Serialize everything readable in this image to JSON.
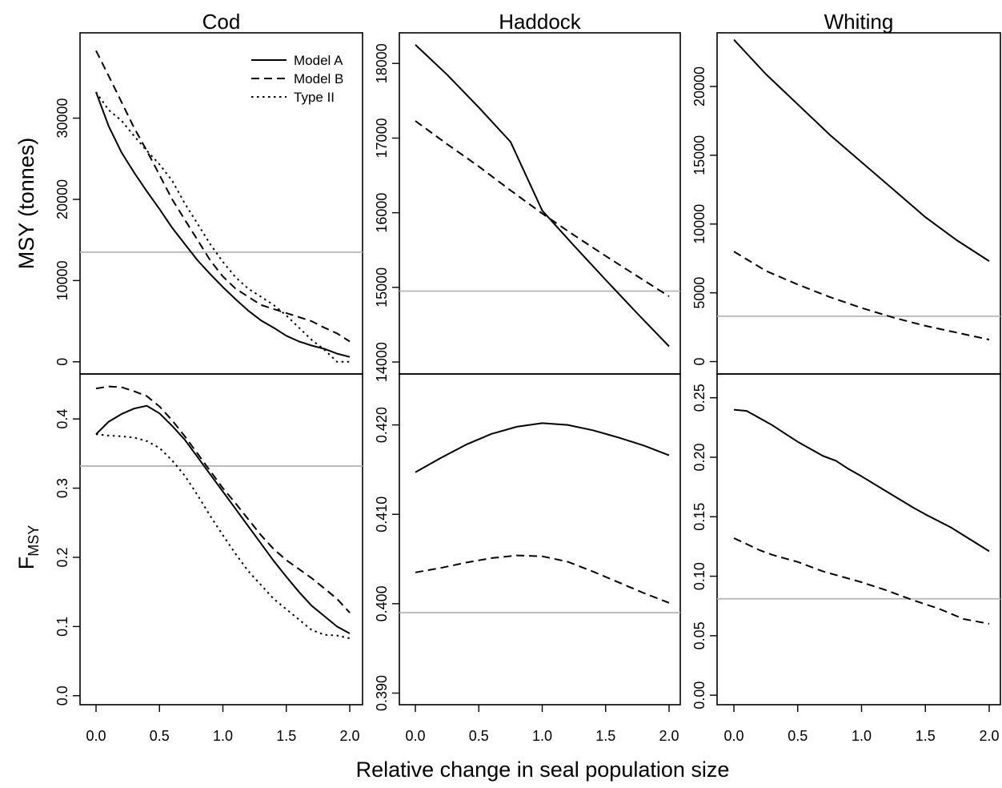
{
  "chart_data": {
    "type": "line",
    "xlabel": "Relative change in seal population size",
    "row_labels": {
      "top": "MSY (tonnes)",
      "bottom_main": "F",
      "bottom_sub": "MSY"
    },
    "x_ticks": [
      "0.0",
      "0.5",
      "1.0",
      "1.5",
      "2.0"
    ],
    "x_tick_values": [
      0,
      0.5,
      1,
      1.5,
      2
    ],
    "xlim": [
      0,
      2
    ],
    "legend": {
      "position": "top-right",
      "panel": "cod",
      "entries": [
        {
          "name": "Model A",
          "style": "solid"
        },
        {
          "name": "Model B",
          "style": "dashed"
        },
        {
          "name": "Type II",
          "style": "dotted"
        }
      ]
    },
    "columns": [
      {
        "key": "cod",
        "title": "Cod",
        "msy": {
          "ylim": [
            -1500,
            40500
          ],
          "yticks": [
            0,
            10000,
            20000,
            30000
          ],
          "ytick_labels": [
            "0",
            "10000",
            "20000",
            "30000"
          ],
          "reference": 13500,
          "series": [
            {
              "name": "Model A",
              "style": "solid",
              "x": [
                0,
                0.1,
                0.2,
                0.3,
                0.4,
                0.5,
                0.6,
                0.7,
                0.8,
                0.9,
                1.0,
                1.1,
                1.2,
                1.3,
                1.4,
                1.5,
                1.6,
                1.7,
                1.8,
                1.9,
                2.0
              ],
              "y": [
                33200,
                29000,
                25800,
                23300,
                21000,
                18800,
                16500,
                14500,
                12500,
                10800,
                9200,
                7700,
                6300,
                5100,
                4200,
                3200,
                2500,
                2000,
                1600,
                1000,
                600
              ]
            },
            {
              "name": "Model B",
              "style": "dashed",
              "x": [
                0,
                0.1,
                0.2,
                0.3,
                0.4,
                0.5,
                0.6,
                0.7,
                0.8,
                0.9,
                1.0,
                1.1,
                1.2,
                1.3,
                1.4,
                1.5,
                1.6,
                1.7,
                1.8,
                1.9,
                2.0
              ],
              "y": [
                38300,
                35200,
                32000,
                28800,
                26000,
                23000,
                20000,
                17500,
                15000,
                12500,
                10500,
                9000,
                8000,
                7000,
                6500,
                6000,
                5500,
                5000,
                4200,
                3500,
                2500
              ]
            },
            {
              "name": "Type II",
              "style": "dotted",
              "x": [
                0,
                0.1,
                0.2,
                0.3,
                0.4,
                0.5,
                0.6,
                0.7,
                0.8,
                0.9,
                1.0,
                1.1,
                1.2,
                1.3,
                1.4,
                1.5,
                1.6,
                1.7,
                1.8,
                1.9,
                2.0
              ],
              "y": [
                33200,
                31000,
                29700,
                27800,
                26000,
                24300,
                22300,
                19500,
                17000,
                14500,
                12300,
                10400,
                9000,
                8000,
                7000,
                5700,
                4200,
                2700,
                1500,
                0,
                0
              ]
            }
          ]
        },
        "fmsy": {
          "ylim": [
            -0.013,
            0.465
          ],
          "yticks": [
            0.0,
            0.1,
            0.2,
            0.3,
            0.4
          ],
          "ytick_labels": [
            "0.0",
            "0.1",
            "0.2",
            "0.3",
            "0.4"
          ],
          "reference": 0.332,
          "series": [
            {
              "name": "Model A",
              "style": "solid",
              "x": [
                0,
                0.1,
                0.2,
                0.3,
                0.4,
                0.5,
                0.6,
                0.7,
                0.8,
                0.9,
                1.0,
                1.1,
                1.2,
                1.3,
                1.4,
                1.5,
                1.6,
                1.7,
                1.8,
                1.9,
                2.0
              ],
              "y": [
                0.378,
                0.396,
                0.407,
                0.415,
                0.419,
                0.408,
                0.39,
                0.37,
                0.345,
                0.32,
                0.295,
                0.27,
                0.245,
                0.22,
                0.195,
                0.172,
                0.15,
                0.13,
                0.115,
                0.1,
                0.09
              ]
            },
            {
              "name": "Model B",
              "style": "dashed",
              "x": [
                0,
                0.1,
                0.2,
                0.3,
                0.4,
                0.5,
                0.6,
                0.7,
                0.8,
                0.9,
                1.0,
                1.1,
                1.2,
                1.3,
                1.4,
                1.5,
                1.6,
                1.7,
                1.8,
                1.9,
                2.0
              ],
              "y": [
                0.444,
                0.447,
                0.446,
                0.44,
                0.433,
                0.418,
                0.398,
                0.375,
                0.35,
                0.325,
                0.3,
                0.278,
                0.255,
                0.232,
                0.212,
                0.196,
                0.183,
                0.17,
                0.155,
                0.14,
                0.12
              ]
            },
            {
              "name": "Type II",
              "style": "dotted",
              "x": [
                0,
                0.1,
                0.2,
                0.3,
                0.4,
                0.5,
                0.6,
                0.7,
                0.8,
                0.9,
                1.0,
                1.1,
                1.2,
                1.3,
                1.4,
                1.5,
                1.6,
                1.7,
                1.8,
                1.9,
                2.0
              ],
              "y": [
                0.378,
                0.376,
                0.375,
                0.373,
                0.368,
                0.358,
                0.34,
                0.318,
                0.29,
                0.26,
                0.232,
                0.205,
                0.18,
                0.16,
                0.14,
                0.125,
                0.11,
                0.095,
                0.088,
                0.087,
                0.083
              ]
            }
          ]
        }
      },
      {
        "key": "haddock",
        "title": "Haddock",
        "msy": {
          "ylim": [
            13840,
            18410
          ],
          "yticks": [
            14000,
            15000,
            16000,
            17000,
            18000
          ],
          "ytick_labels": [
            "14000",
            "15000",
            "16000",
            "17000",
            "18000"
          ],
          "reference": 14950,
          "series": [
            {
              "name": "Model A",
              "style": "solid",
              "x": [
                0,
                0.25,
                0.5,
                0.75,
                1.0,
                1.25,
                1.5,
                1.75,
                2.0
              ],
              "y": [
                18250,
                17850,
                17410,
                16950,
                16030,
                15560,
                15100,
                14650,
                14210
              ]
            },
            {
              "name": "Model B",
              "style": "dashed",
              "x": [
                0,
                0.25,
                0.5,
                0.75,
                1.0,
                1.25,
                1.5,
                1.75,
                2.0
              ],
              "y": [
                17230,
                16920,
                16620,
                16300,
                15990,
                15700,
                15420,
                15150,
                14880
              ]
            }
          ]
        },
        "fmsy": {
          "ylim": [
            0.3887,
            0.4257
          ],
          "yticks": [
            0.39,
            0.4,
            0.41,
            0.42
          ],
          "ytick_labels": [
            "0.390",
            "0.400",
            "0.410",
            "0.420"
          ],
          "reference": 0.399,
          "series": [
            {
              "name": "Model A",
              "style": "solid",
              "x": [
                0,
                0.2,
                0.4,
                0.6,
                0.8,
                1.0,
                1.2,
                1.4,
                1.6,
                1.8,
                2.0
              ],
              "y": [
                0.4147,
                0.4163,
                0.4178,
                0.419,
                0.4198,
                0.4202,
                0.42,
                0.4194,
                0.4186,
                0.4177,
                0.4166
              ]
            },
            {
              "name": "Model B",
              "style": "dashed",
              "x": [
                0,
                0.2,
                0.4,
                0.6,
                0.8,
                1.0,
                1.2,
                1.4,
                1.6,
                1.8,
                2.0
              ],
              "y": [
                0.4035,
                0.404,
                0.4046,
                0.4051,
                0.4054,
                0.4053,
                0.4047,
                0.4036,
                0.4024,
                0.4012,
                0.4001
              ]
            }
          ]
        }
      },
      {
        "key": "whiting",
        "title": "Whiting",
        "msy": {
          "ylim": [
            -900,
            23900
          ],
          "yticks": [
            0,
            5000,
            10000,
            15000,
            20000
          ],
          "ytick_labels": [
            "0",
            "5000",
            "10000",
            "15000",
            "20000"
          ],
          "reference": 3300,
          "series": [
            {
              "name": "Model A",
              "style": "solid",
              "x": [
                0,
                0.25,
                0.5,
                0.75,
                1.0,
                1.25,
                1.5,
                1.75,
                2.0
              ],
              "y": [
                23400,
                20900,
                18700,
                16500,
                14500,
                12500,
                10500,
                8800,
                7300
              ]
            },
            {
              "name": "Model B",
              "style": "dashed",
              "x": [
                0,
                0.25,
                0.5,
                0.75,
                1.0,
                1.25,
                1.5,
                1.75,
                2.0
              ],
              "y": [
                8000,
                6600,
                5600,
                4700,
                3900,
                3200,
                2600,
                2100,
                1600
              ]
            }
          ]
        },
        "fmsy": {
          "ylim": [
            -0.008,
            0.27
          ],
          "yticks": [
            0.0,
            0.05,
            0.1,
            0.15,
            0.2,
            0.25
          ],
          "ytick_labels": [
            "0.00",
            "0.05",
            "0.10",
            "0.15",
            "0.20",
            "0.25"
          ],
          "reference": 0.081,
          "series": [
            {
              "name": "Model A",
              "style": "solid",
              "x": [
                0,
                0.1,
                0.2,
                0.3,
                0.4,
                0.5,
                0.6,
                0.7,
                0.8,
                0.9,
                1.0,
                1.2,
                1.4,
                1.5,
                1.7,
                2.0
              ],
              "y": [
                0.24,
                0.239,
                0.233,
                0.227,
                0.22,
                0.213,
                0.207,
                0.201,
                0.197,
                0.19,
                0.184,
                0.171,
                0.158,
                0.152,
                0.141,
                0.121
              ]
            },
            {
              "name": "Model B",
              "style": "dashed",
              "x": [
                0,
                0.1,
                0.2,
                0.3,
                0.4,
                0.5,
                0.6,
                0.7,
                0.8,
                0.9,
                1.0,
                1.2,
                1.4,
                1.6,
                1.8,
                2.0
              ],
              "y": [
                0.132,
                0.127,
                0.122,
                0.118,
                0.115,
                0.112,
                0.108,
                0.104,
                0.101,
                0.098,
                0.095,
                0.088,
                0.08,
                0.073,
                0.064,
                0.06
              ]
            }
          ]
        }
      }
    ]
  }
}
